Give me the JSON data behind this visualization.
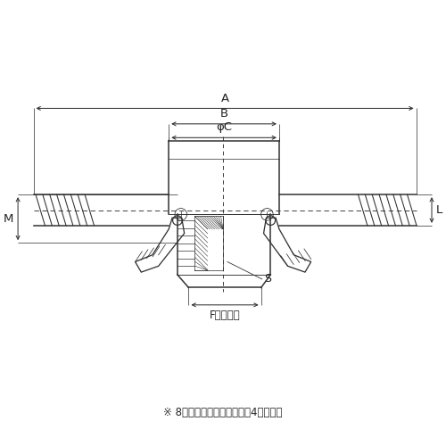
{
  "bg_color": "#ffffff",
  "line_color": "#333333",
  "text_color": "#222222",
  "fig_width": 5.0,
  "fig_height": 5.0,
  "dpi": 100,
  "footnote": "8インチ品のカムアームは4本です。",
  "label_A": "A",
  "label_B": "B",
  "label_phiC": "φC",
  "label_L": "L",
  "label_M": "M",
  "label_S": "S",
  "label_F": "F（対辺）"
}
